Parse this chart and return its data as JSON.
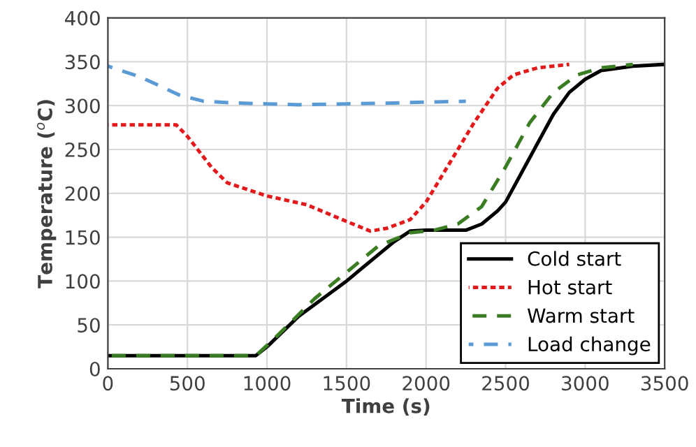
{
  "chart_data": {
    "type": "line",
    "xlabel": "Time (s)",
    "ylabel": "Temperature ($^{o}$C)",
    "xlim": [
      0,
      3500
    ],
    "xticks": [
      0,
      500,
      1000,
      1500,
      2000,
      2500,
      3000,
      3500
    ],
    "ylim": [
      0,
      400
    ],
    "yticks": [
      0,
      50,
      100,
      150,
      200,
      250,
      300,
      350,
      400
    ],
    "grid": true,
    "legend": "bottom right",
    "marker": "none",
    "series": [
      {
        "name": "Cold start",
        "color": "#000000",
        "line_style": "solid",
        "x": [
          0,
          930,
          1000,
          1200,
          1500,
          1800,
          1900,
          2000,
          2250,
          2350,
          2450,
          2500,
          2650,
          2800,
          2900,
          3000,
          3100,
          3300,
          3500
        ],
        "values": [
          15,
          15,
          25,
          60,
          100,
          145,
          157,
          158,
          158,
          165,
          180,
          190,
          240,
          290,
          315,
          330,
          340,
          345,
          347
        ]
      },
      {
        "name": "Hot start",
        "color": "#e31a1c",
        "line_style": "dotted",
        "x": [
          0,
          430,
          500,
          650,
          750,
          1000,
          1250,
          1500,
          1650,
          1750,
          1900,
          2000,
          2150,
          2300,
          2450,
          2550,
          2700,
          2900
        ],
        "values": [
          278,
          278,
          265,
          230,
          212,
          197,
          187,
          168,
          157,
          160,
          170,
          190,
          235,
          280,
          320,
          335,
          343,
          347
        ]
      },
      {
        "name": "Warm start",
        "color": "#3a7d22",
        "line_style": "dashed",
        "x": [
          0,
          930,
          1050,
          1300,
          1500,
          1700,
          1900,
          2050,
          2200,
          2350,
          2500,
          2650,
          2800,
          2950,
          3100,
          3300
        ],
        "values": [
          15,
          15,
          35,
          80,
          110,
          140,
          155,
          158,
          165,
          185,
          230,
          280,
          315,
          335,
          343,
          347
        ]
      },
      {
        "name": "Load change",
        "color": "#5b9bd5",
        "line_style": "dashed",
        "x": [
          0,
          200,
          450,
          600,
          800,
          1000,
          1200,
          1500,
          1800,
          2000,
          2250
        ],
        "values": [
          345,
          333,
          312,
          305,
          303,
          302,
          301,
          302,
          303,
          304,
          305
        ]
      }
    ]
  }
}
